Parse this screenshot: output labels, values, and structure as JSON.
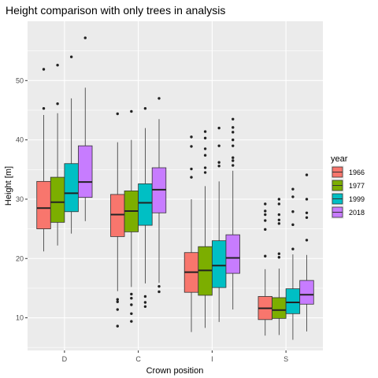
{
  "chart_data": {
    "type": "boxplot",
    "title": "Height comparison with only trees in analysis",
    "xlabel": "Crown position",
    "ylabel": "Height [m]",
    "ylim": [
      4.5,
      60
    ],
    "yticks": [
      10,
      20,
      30,
      40,
      50
    ],
    "grid": true,
    "legend_position": "right",
    "legend_title": "year",
    "categories": [
      "D",
      "C",
      "I",
      "S"
    ],
    "series": [
      {
        "name": "1966",
        "color": "#F8766D",
        "boxes": [
          {
            "min": 21.2,
            "q1": 25.0,
            "median": 28.5,
            "q3": 33.0,
            "max": 44.2,
            "outliers": [
              45.3,
              51.9
            ]
          },
          {
            "min": 14.5,
            "q1": 23.7,
            "median": 27.4,
            "q3": 30.8,
            "max": 39.6,
            "outliers": [
              8.6,
              11.4,
              12.7,
              13.1,
              44.4
            ]
          },
          {
            "min": 7.6,
            "q1": 14.3,
            "median": 17.7,
            "q3": 21.0,
            "max": 30.0,
            "outliers": [
              33.7,
              35.1,
              38.9,
              40.5
            ]
          },
          {
            "min": 7.0,
            "q1": 9.7,
            "median": 11.6,
            "q3": 13.6,
            "max": 18.2,
            "outliers": [
              20.4,
              24.9,
              26.4,
              27.4,
              28.0,
              29.2
            ]
          }
        ]
      },
      {
        "name": "1977",
        "color": "#7CAE00",
        "boxes": [
          {
            "min": 22.2,
            "q1": 26.1,
            "median": 29.5,
            "q3": 33.7,
            "max": 44.5,
            "outliers": [
              46.1,
              52.6
            ]
          },
          {
            "min": 15.2,
            "q1": 24.5,
            "median": 28.0,
            "q3": 31.4,
            "max": 40.0,
            "outliers": [
              9.4,
              10.7,
              12.2,
              13.3,
              14.0,
              44.8
            ]
          },
          {
            "min": 8.3,
            "q1": 13.8,
            "median": 18.0,
            "q3": 22.0,
            "max": 32.2,
            "outliers": [
              34.5,
              35.3,
              37.4,
              38.5,
              40.3,
              41.4
            ]
          },
          {
            "min": 7.1,
            "q1": 9.9,
            "median": 11.3,
            "q3": 13.4,
            "max": 18.3,
            "outliers": [
              20.2,
              20.8,
              25.9,
              26.5,
              27.4,
              29.2,
              30.0
            ]
          }
        ]
      },
      {
        "name": "1999",
        "color": "#00BFC4",
        "boxes": [
          {
            "min": 24.2,
            "q1": 27.9,
            "median": 31.0,
            "q3": 36.0,
            "max": 47.0,
            "outliers": [
              54.0
            ]
          },
          {
            "min": 15.8,
            "q1": 25.6,
            "median": 29.4,
            "q3": 32.6,
            "max": 42.0,
            "outliers": [
              11.9,
              12.6,
              13.6,
              45.3
            ]
          },
          {
            "min": 9.3,
            "q1": 15.1,
            "median": 18.8,
            "q3": 23.0,
            "max": 33.0,
            "outliers": [
              35.6,
              36.2,
              39.0,
              42.0
            ]
          },
          {
            "min": 6.3,
            "q1": 10.7,
            "median": 12.6,
            "q3": 14.9,
            "max": 20.7,
            "outliers": [
              21.6,
              25.7,
              27.9,
              30.4,
              31.7
            ]
          }
        ]
      },
      {
        "name": "2018",
        "color": "#C77CFF",
        "boxes": [
          {
            "min": 26.3,
            "q1": 30.3,
            "median": 32.9,
            "q3": 39.0,
            "max": 48.8,
            "outliers": [
              57.2
            ]
          },
          {
            "min": 15.9,
            "q1": 27.7,
            "median": 31.6,
            "q3": 35.3,
            "max": 43.5,
            "outliers": [
              14.4,
              15.3,
              47.0
            ]
          },
          {
            "min": 11.4,
            "q1": 17.5,
            "median": 20.1,
            "q3": 24.0,
            "max": 34.8,
            "outliers": [
              35.7,
              36.5,
              37.0,
              39.0,
              40.0,
              41.3,
              42.1,
              43.5
            ]
          },
          {
            "min": 7.7,
            "q1": 12.3,
            "median": 13.9,
            "q3": 16.3,
            "max": 20.6,
            "outliers": [
              23.1,
              26.9,
              27.7,
              30.0,
              34.1
            ]
          }
        ]
      }
    ]
  }
}
